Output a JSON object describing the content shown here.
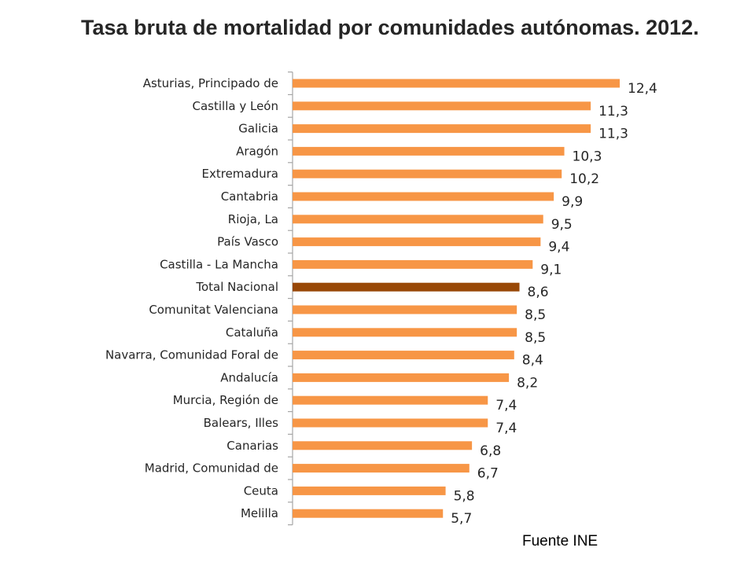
{
  "chart_data": {
    "type": "bar",
    "orientation": "horizontal",
    "title": "Tasa bruta de mortalidad por comunidades autónomas. 2012.",
    "xlabel": "",
    "ylabel": "",
    "xlim": [
      0,
      12.4
    ],
    "grid": false,
    "categories": [
      "Asturias, Principado de",
      "Castilla y León",
      "Galicia",
      "Aragón",
      "Extremadura",
      "Cantabria",
      "Rioja, La",
      "País Vasco",
      "Castilla - La Mancha",
      "Total Nacional",
      "Comunitat Valenciana",
      "Cataluña",
      "Navarra, Comunidad Foral de",
      "Andalucía",
      "Murcia, Región de",
      "Balears, Illes",
      "Canarias",
      "Madrid, Comunidad de",
      "Ceuta",
      "Melilla"
    ],
    "values": [
      12.4,
      11.3,
      11.3,
      10.3,
      10.2,
      9.9,
      9.5,
      9.4,
      9.1,
      8.6,
      8.5,
      8.5,
      8.4,
      8.2,
      7.4,
      7.4,
      6.8,
      6.7,
      5.8,
      5.7
    ],
    "value_labels": [
      "12,4",
      "11,3",
      "11,3",
      "10,3",
      "10,2",
      "9,9",
      "9,5",
      "9,4",
      "9,1",
      "8,6",
      "8,5",
      "8,5",
      "8,4",
      "8,2",
      "7,4",
      "7,4",
      "6,8",
      "6,7",
      "5,8",
      "5,7"
    ],
    "highlight_category": "Total Nacional",
    "colors": {
      "bar": "#F79646",
      "highlight": "#984807",
      "axis": "#A6A6A6"
    }
  },
  "source": "Fuente INE"
}
